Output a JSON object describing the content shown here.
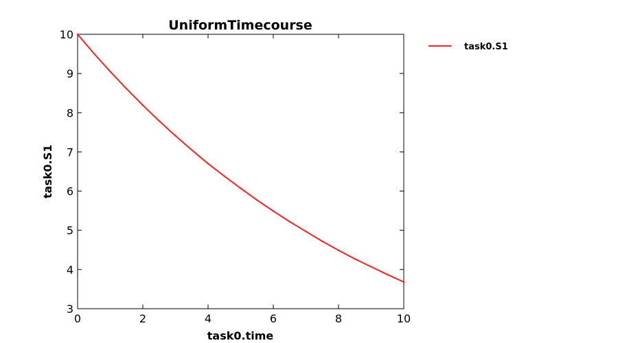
{
  "chart_data": {
    "type": "line",
    "title": "UniformTimecourse",
    "xlabel": "task0.time",
    "ylabel": "task0.S1",
    "xlim": [
      0,
      10
    ],
    "ylim": [
      3,
      10
    ],
    "xticks": [
      0,
      2,
      4,
      6,
      8,
      10
    ],
    "yticks": [
      3,
      4,
      5,
      6,
      7,
      8,
      9,
      10
    ],
    "xtick_labels": [
      "0",
      "2",
      "4",
      "6",
      "8",
      "10"
    ],
    "ytick_labels": [
      "3",
      "4",
      "5",
      "6",
      "7",
      "8",
      "9",
      "10"
    ],
    "grid": false,
    "legend": {
      "placement": "outside-right-top",
      "entries": [
        "task0.S1"
      ]
    },
    "series": [
      {
        "name": "task0.S1",
        "color": "#ff2020",
        "x": [
          0,
          0.5,
          1,
          1.5,
          2,
          2.5,
          3,
          3.5,
          4,
          4.5,
          5,
          5.5,
          6,
          6.5,
          7,
          7.5,
          8,
          8.5,
          9,
          9.5,
          10
        ],
        "y": [
          10.0,
          9.51,
          9.05,
          8.61,
          8.19,
          7.79,
          7.41,
          7.05,
          6.7,
          6.38,
          6.07,
          5.77,
          5.49,
          5.22,
          4.97,
          4.72,
          4.49,
          4.27,
          4.07,
          3.87,
          3.68
        ]
      }
    ]
  }
}
